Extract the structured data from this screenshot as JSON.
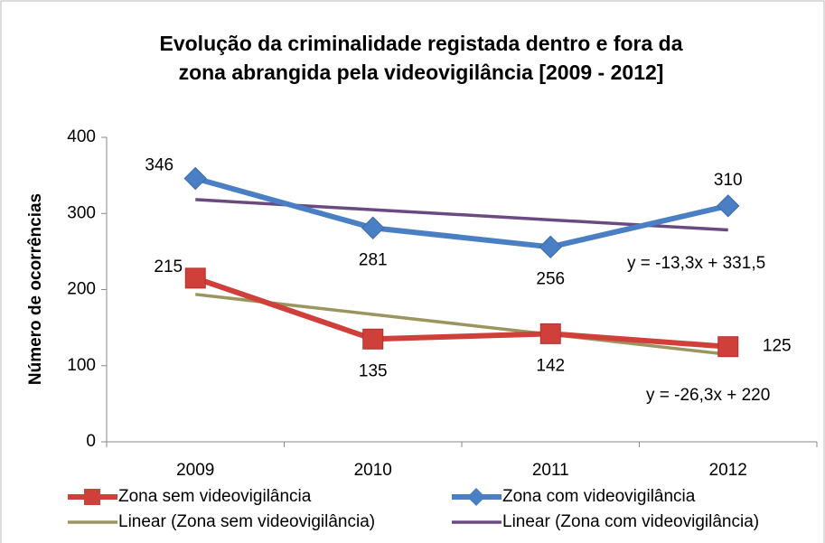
{
  "chart_data": {
    "type": "line",
    "title": [
      "Evolução da criminalidade registada dentro e fora da",
      "zona abrangida pela videovigilância [2009 - 2012]"
    ],
    "ylabel": "Número de ocorrências",
    "categories": [
      "2009",
      "2010",
      "2011",
      "2012"
    ],
    "series": [
      {
        "name": "Zona sem videovigilância",
        "color": "#d0403a",
        "marker": "square",
        "values": [
          215,
          135,
          142,
          125
        ]
      },
      {
        "name": "Zona com videovigilância",
        "color": "#4a7fc4",
        "marker": "diamond",
        "values": [
          346,
          281,
          256,
          310
        ]
      },
      {
        "name": "Linear (Zona sem videovigilância)",
        "color": "#9c9560",
        "values": [
          193.7,
          167.4,
          141.1,
          114.8
        ]
      },
      {
        "name": "Linear (Zona com videovigilância)",
        "color": "#6a4a82",
        "values": [
          318.2,
          304.9,
          291.6,
          278.3
        ]
      }
    ],
    "annotations": [
      "y = -13,3x + 331,5",
      "y = -26,3x + 220"
    ],
    "ylim": [
      0,
      400
    ],
    "yticks": [
      0,
      100,
      200,
      300,
      400
    ],
    "grid": false
  }
}
